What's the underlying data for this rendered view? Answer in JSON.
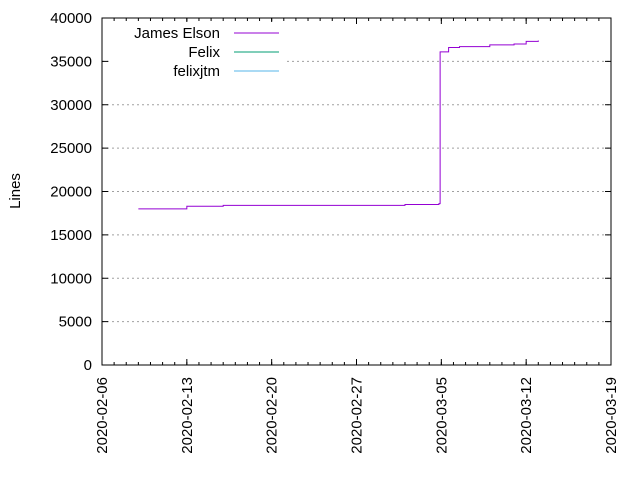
{
  "chart_data": {
    "type": "line",
    "title": "",
    "xlabel": "",
    "ylabel": "Lines",
    "x_type": "date",
    "xlim": [
      "2020-02-06",
      "2020-03-19"
    ],
    "ylim": [
      0,
      40000
    ],
    "x_ticks": [
      "2020-02-06",
      "2020-02-13",
      "2020-02-20",
      "2020-02-27",
      "2020-03-05",
      "2020-03-12",
      "2020-03-19"
    ],
    "y_ticks": [
      0,
      5000,
      10000,
      15000,
      20000,
      25000,
      30000,
      35000,
      40000
    ],
    "y_tick_labels": [
      "0",
      "5000",
      "10000",
      "15000",
      "20000",
      "25000",
      "30000",
      "35000",
      "40000"
    ],
    "grid": true,
    "legend_position": "top-left",
    "series": [
      {
        "name": "James Elson",
        "color": "#9400d3",
        "x": [
          "2020-02-09",
          "2020-02-12.7",
          "2020-02-13",
          "2020-02-16",
          "2020-03-02",
          "2020-03-04.8",
          "2020-03-04.9",
          "2020-03-05.0",
          "2020-03-05.6",
          "2020-03-06.5",
          "2020-03-09",
          "2020-03-11",
          "2020-03-12",
          "2020-03-13"
        ],
        "y": [
          18000,
          18000,
          18300,
          18400,
          18500,
          18600,
          36100,
          36100,
          36600,
          36700,
          36900,
          37000,
          37300,
          37400
        ]
      },
      {
        "name": "Felix",
        "color": "#009e73",
        "x": [],
        "y": []
      },
      {
        "name": "felixjtm",
        "color": "#56b4e9",
        "x": [],
        "y": []
      }
    ]
  }
}
